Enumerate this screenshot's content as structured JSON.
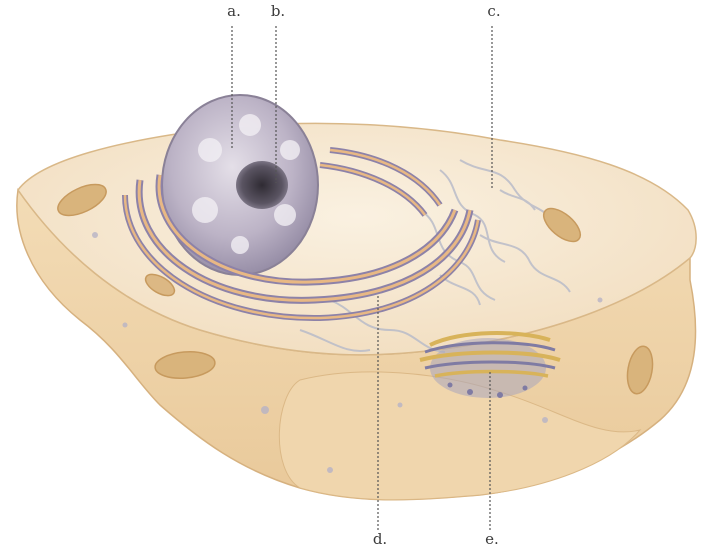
{
  "labels": {
    "a": "a.",
    "b": "b.",
    "c": "c.",
    "d": "d.",
    "e": "e."
  },
  "colors": {
    "cytoplasm": "#f6e6cc",
    "membrane": "#e7c79a",
    "nucleus": "#b6adbf",
    "nucleolus": "#4a4550",
    "er_membrane": "#8d82a8",
    "er_lumen": "#e8b884",
    "mitochondrion": "#d9b47c",
    "leader_line": "#555555"
  }
}
